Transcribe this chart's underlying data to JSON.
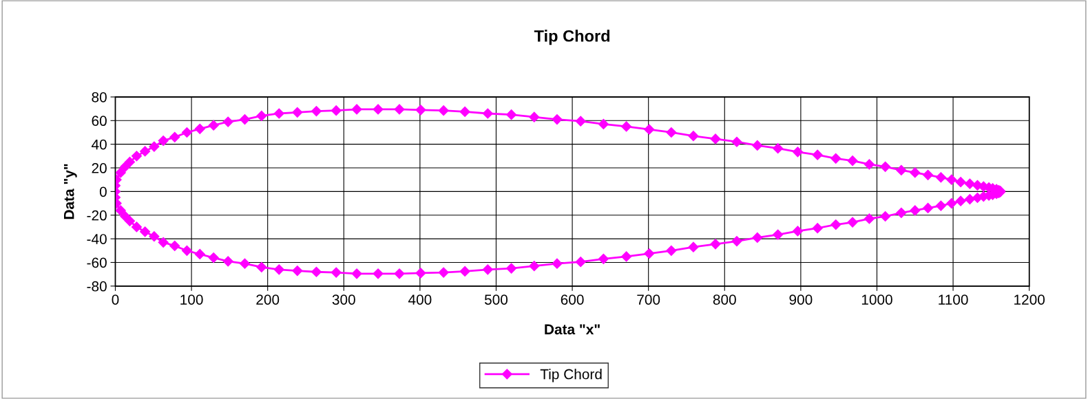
{
  "chart_data": {
    "type": "line",
    "title": "Tip Chord",
    "xlabel": "Data \"x\"",
    "ylabel": "Data \"y\"",
    "series": [
      {
        "name": "Tip Chord",
        "color": "#ff00ff",
        "x": [
          1162,
          1160,
          1157,
          1152,
          1147,
          1140,
          1132,
          1122,
          1110,
          1098,
          1084,
          1067,
          1050,
          1032,
          1011,
          990,
          968,
          946,
          922,
          896,
          870,
          843,
          816,
          788,
          759,
          730,
          701,
          671,
          641,
          611,
          580,
          550,
          520,
          489,
          459,
          431,
          401,
          373,
          345,
          317,
          290,
          264,
          239,
          215,
          192,
          170,
          148,
          129,
          111,
          94,
          78,
          63,
          51,
          39,
          28,
          19,
          13,
          7,
          1.5,
          0,
          0,
          0,
          1.5,
          7,
          13,
          19,
          28,
          39,
          51,
          63,
          78,
          94,
          111,
          129,
          148,
          170,
          192,
          215,
          239,
          264,
          290,
          317,
          345,
          373,
          401,
          431,
          459,
          489,
          520,
          550,
          580,
          611,
          641,
          671,
          701,
          730,
          759,
          788,
          816,
          843,
          870,
          896,
          922,
          946,
          968,
          990,
          1011,
          1032,
          1050,
          1067,
          1084,
          1098,
          1110,
          1122,
          1132,
          1140,
          1147,
          1152,
          1157,
          1160,
          1162
        ],
        "values": [
          0.4,
          1.1,
          1.9,
          2.7,
          3.4,
          4.2,
          5.3,
          6.5,
          8,
          10,
          12,
          14,
          16,
          18,
          21,
          23,
          26,
          28,
          31,
          33.5,
          36.5,
          39,
          42,
          44.5,
          47,
          50,
          52.5,
          55,
          57,
          59.5,
          61,
          63,
          65,
          66,
          67.5,
          68.5,
          69,
          69.5,
          69.5,
          69.5,
          68.5,
          68,
          67,
          66,
          64,
          61,
          59,
          56,
          53,
          50,
          46,
          43,
          38,
          34,
          30,
          25,
          21,
          16,
          10,
          5,
          0,
          -5,
          -10,
          -16,
          -21,
          -25,
          -30,
          -34,
          -38,
          -43,
          -46,
          -50,
          -53,
          -56,
          -59,
          -61,
          -64,
          -66,
          -67,
          -68,
          -68.5,
          -69.5,
          -69.5,
          -69.5,
          -69,
          -68.5,
          -67.5,
          -66,
          -65,
          -63,
          -61,
          -59.5,
          -57,
          -55,
          -52.5,
          -50,
          -47,
          -44.5,
          -42,
          -39,
          -36.5,
          -33.5,
          -31,
          -28,
          -26,
          -23,
          -21,
          -18,
          -16,
          -14,
          -12,
          -10,
          -8,
          -6.5,
          -5.3,
          -4.2,
          -3.4,
          -2.7,
          -1.9,
          -1.1,
          -0.4
        ]
      }
    ],
    "xlim": [
      0,
      1200
    ],
    "xticks": [
      0,
      100,
      200,
      300,
      400,
      500,
      600,
      700,
      800,
      900,
      1000,
      1100,
      1200
    ],
    "ylim": [
      -80,
      80
    ],
    "yticks": [
      -80,
      -60,
      -40,
      -20,
      0,
      20,
      40,
      60,
      80
    ],
    "grid": true,
    "legend": "bottom",
    "marker": "diamond",
    "line_style": "solid"
  }
}
